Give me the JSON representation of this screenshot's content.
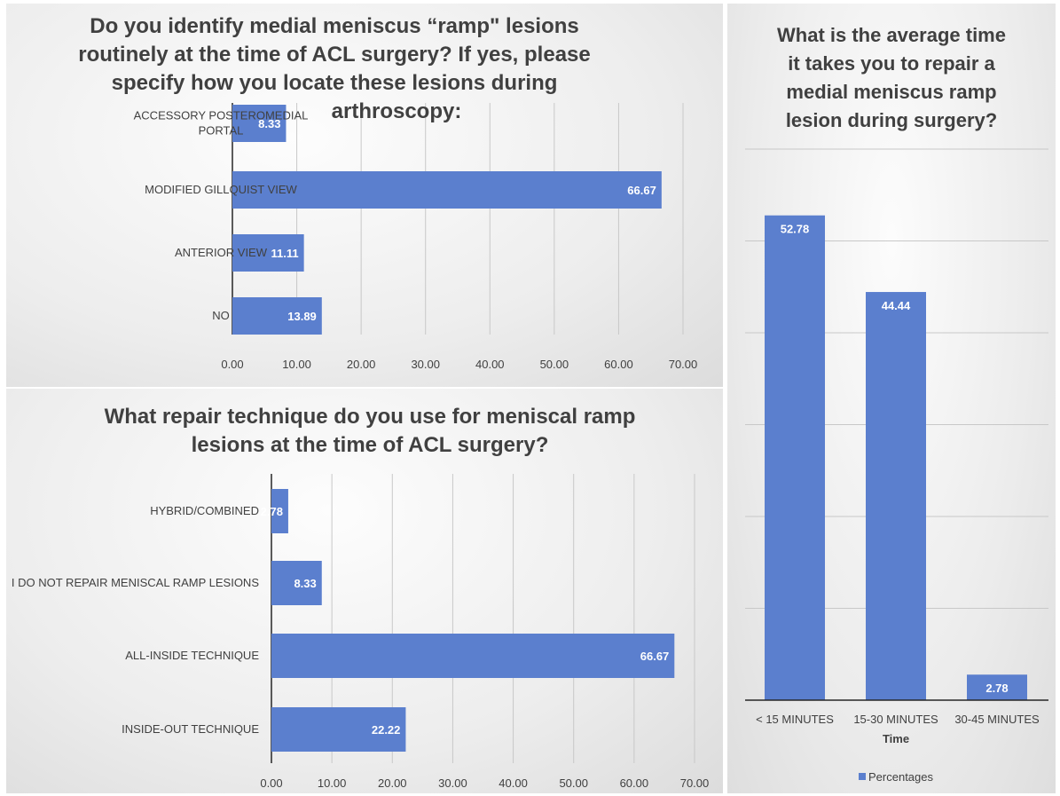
{
  "chart_data": [
    {
      "type": "bar",
      "orientation": "horizontal",
      "title": "Do you identify medial meniscus “ramp” lesions routinely at the time of ACL surgery? If yes, please specify how you locate these lesions during arthroscopy:",
      "title_lines": [
        "Do you identify medial meniscus “ramp\" lesions",
        "routinely at the time of ACL surgery? If yes, please",
        "specify how you locate these lesions during",
        "arthroscopy:"
      ],
      "categories": [
        "ACCESSORY POSTEROMEDIAL PORTAL",
        "MODIFIED GILLQUIST VIEW",
        "ANTERIOR VIEW",
        "NO"
      ],
      "category_lines": [
        [
          "ACCESSORY POSTEROMEDIAL",
          "PORTAL"
        ],
        [
          "MODIFIED GILLQUIST VIEW"
        ],
        [
          "ANTERIOR VIEW"
        ],
        [
          "NO"
        ]
      ],
      "values": [
        8.33,
        66.67,
        11.11,
        13.89
      ],
      "value_labels": [
        "8.33",
        "66.67",
        "11.11",
        "13.89"
      ],
      "xlim": [
        0,
        70
      ],
      "ticks": [
        "0.00",
        "10.00",
        "20.00",
        "30.00",
        "40.00",
        "50.00",
        "60.00",
        "70.00"
      ],
      "grid": "vertical"
    },
    {
      "type": "bar",
      "orientation": "horizontal",
      "title": "What repair technique do you use for meniscal ramp lesions at the time of ACL surgery?",
      "title_lines": [
        "What repair technique do you use for meniscal ramp",
        "lesions at the time of ACL surgery?"
      ],
      "categories": [
        "HYBRID/COMBINED",
        "I DO NOT REPAIR MENISCAL RAMP LESIONS",
        "ALL-INSIDE TECHNIQUE",
        "INSIDE-OUT TECHNIQUE"
      ],
      "category_lines": [
        [
          "HYBRID/COMBINED"
        ],
        [
          "I DO NOT REPAIR MENISCAL RAMP LESIONS"
        ],
        [
          "ALL-INSIDE TECHNIQUE"
        ],
        [
          "INSIDE-OUT TECHNIQUE"
        ]
      ],
      "values": [
        2.78,
        8.33,
        66.67,
        22.22
      ],
      "value_labels": [
        "2.78",
        "8.33",
        "66.67",
        "22.22"
      ],
      "xlim": [
        0,
        70
      ],
      "ticks": [
        "0.00",
        "10.00",
        "20.00",
        "30.00",
        "40.00",
        "50.00",
        "60.00",
        "70.00"
      ],
      "grid": "vertical"
    },
    {
      "type": "bar",
      "orientation": "vertical",
      "title": "What is the average time it takes you to repair a medial meniscus ramp lesion during surgery?",
      "title_lines": [
        "What is the average time",
        "it takes you to repair a",
        "medial meniscus ramp",
        "lesion during surgery?"
      ],
      "categories": [
        "< 15 MINUTES",
        "15-30 MINUTES",
        "30-45 MINUTES"
      ],
      "values": [
        52.78,
        44.44,
        2.78
      ],
      "value_labels": [
        "52.78",
        "44.44",
        "2.78"
      ],
      "ylim": [
        0,
        60
      ],
      "xlabel": "Time",
      "legend": [
        "Percentages"
      ],
      "legend_position": "bottom",
      "grid": "horizontal"
    }
  ],
  "colors": {
    "bar": "#5b7fce",
    "bar_text": "#ffffff",
    "grid": "#c8c8c8",
    "axis": "#262626",
    "text": "#404040"
  }
}
